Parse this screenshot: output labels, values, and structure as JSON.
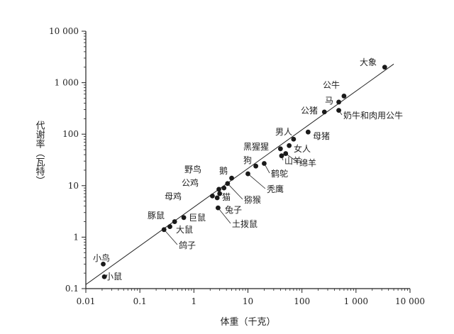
{
  "chart_data": {
    "type": "scatter",
    "title": "",
    "xlabel": "体重（千克）",
    "ylabel": "代谢率（瓦特）",
    "xscale": "log",
    "yscale": "log",
    "xlim": [
      0.01,
      10000
    ],
    "ylim": [
      0.1,
      10000
    ],
    "x_ticks": [
      {
        "value": 0.01,
        "label": "0.01"
      },
      {
        "value": 0.1,
        "label": "0.1"
      },
      {
        "value": 1,
        "label": "1"
      },
      {
        "value": 10,
        "label": "10"
      },
      {
        "value": 100,
        "label": "100"
      },
      {
        "value": 1000,
        "label": "1 000"
      },
      {
        "value": 10000,
        "label": "10 000"
      }
    ],
    "y_ticks": [
      {
        "value": 0.1,
        "label": "0.1"
      },
      {
        "value": 1,
        "label": "1"
      },
      {
        "value": 10,
        "label": "10"
      },
      {
        "value": 100,
        "label": "100"
      },
      {
        "value": 1000,
        "label": "1 000"
      },
      {
        "value": 10000,
        "label": "10 000"
      }
    ],
    "grid": false,
    "trendline": {
      "from": [
        0.01,
        0.12
      ],
      "to": [
        5000,
        2300
      ]
    },
    "points": [
      {
        "name": "大象",
        "x": 3400,
        "y": 2000
      },
      {
        "name": "公牛",
        "x": 600,
        "y": 550
      },
      {
        "name": "马",
        "x": 480,
        "y": 420
      },
      {
        "name": "公猪",
        "x": 260,
        "y": 270
      },
      {
        "name": "奶牛和肉用公牛",
        "x": 480,
        "y": 290
      },
      {
        "name": "母猪",
        "x": 130,
        "y": 110
      },
      {
        "name": "男人",
        "x": 70,
        "y": 80
      },
      {
        "name": "女人",
        "x": 58,
        "y": 60
      },
      {
        "name": "黑猩猩",
        "x": 40,
        "y": 52
      },
      {
        "name": "山羊",
        "x": 42,
        "y": 38
      },
      {
        "name": "绵羊",
        "x": 50,
        "y": 42
      },
      {
        "name": "狗",
        "x": 14,
        "y": 24
      },
      {
        "name": "鹤鸵",
        "x": 20,
        "y": 27
      },
      {
        "name": "秃鹰",
        "x": 10,
        "y": 17
      },
      {
        "name": "鹅",
        "x": 5,
        "y": 14
      },
      {
        "name": "野鸟",
        "x": 3.6,
        "y": 9
      },
      {
        "name": "公鸡",
        "x": 2.9,
        "y": 8.5
      },
      {
        "name": "猕猴",
        "x": 4.2,
        "y": 11
      },
      {
        "name": "猫",
        "x": 3,
        "y": 7
      },
      {
        "name": "母鸡",
        "x": 2.2,
        "y": 6.3
      },
      {
        "name": "兔子",
        "x": 2.7,
        "y": 5.8
      },
      {
        "name": "土拨鼠",
        "x": 2.8,
        "y": 3.7
      },
      {
        "name": "豚鼠",
        "x": 0.44,
        "y": 2
      },
      {
        "name": "巨鼠",
        "x": 0.65,
        "y": 2.4
      },
      {
        "name": "大鼠",
        "x": 0.36,
        "y": 1.6
      },
      {
        "name": "鸽子",
        "x": 0.28,
        "y": 1.4
      },
      {
        "name": "小鸟",
        "x": 0.021,
        "y": 0.3
      },
      {
        "name": "小鼠",
        "x": 0.022,
        "y": 0.17
      }
    ]
  },
  "colors": {
    "axis": "#222222",
    "marker": "#1a1a1a",
    "line": "#222222"
  }
}
